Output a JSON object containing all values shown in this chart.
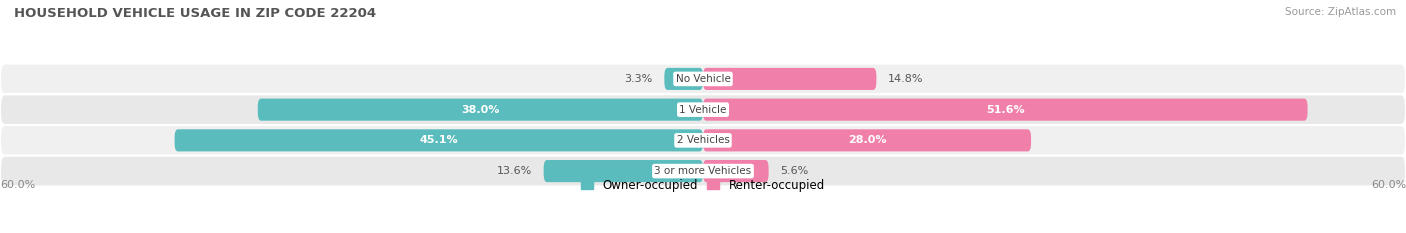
{
  "title": "HOUSEHOLD VEHICLE USAGE IN ZIP CODE 22204",
  "source": "Source: ZipAtlas.com",
  "categories": [
    "No Vehicle",
    "1 Vehicle",
    "2 Vehicles",
    "3 or more Vehicles"
  ],
  "owner_values": [
    3.3,
    38.0,
    45.1,
    13.6
  ],
  "renter_values": [
    14.8,
    51.6,
    28.0,
    5.6
  ],
  "owner_color": "#5bbcbd",
  "renter_color": "#f07faa",
  "row_bg_colors": [
    "#f0f0f0",
    "#e8e8e8",
    "#f0f0f0",
    "#e8e8e8"
  ],
  "axis_max": 60.0,
  "axis_label_left": "60.0%",
  "axis_label_right": "60.0%",
  "title_color": "#555555",
  "source_color": "#999999",
  "legend_owner": "Owner-occupied",
  "legend_renter": "Renter-occupied"
}
